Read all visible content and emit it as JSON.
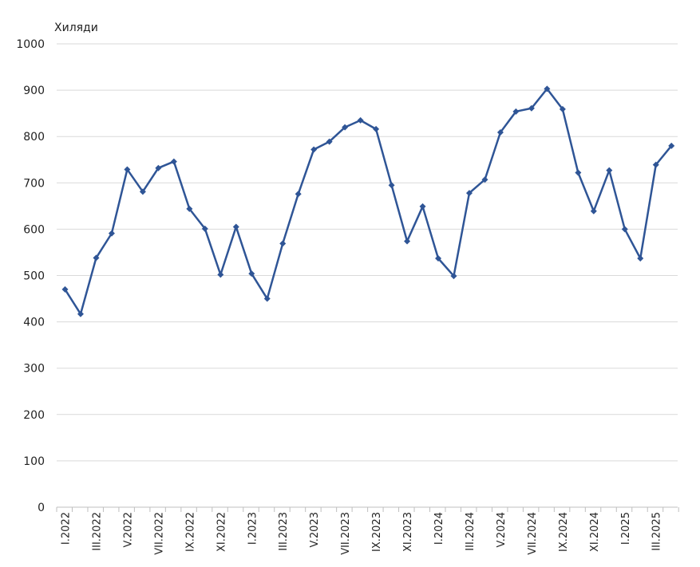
{
  "chart_data": {
    "type": "line",
    "unit_label": "Хиляди",
    "ylim": [
      0,
      1000
    ],
    "y_ticks": [
      0,
      100,
      200,
      300,
      400,
      500,
      600,
      700,
      800,
      900,
      1000
    ],
    "grid": true,
    "legend": "none",
    "categories": [
      "I.2022",
      "II.2022",
      "III.2022",
      "IV.2022",
      "V.2022",
      "VI.2022",
      "VII.2022",
      "VIII.2022",
      "IX.2022",
      "X.2022",
      "XI.2022",
      "XII.2022",
      "I.2023",
      "II.2023",
      "III.2023",
      "IV.2023",
      "V.2023",
      "VI.2023",
      "VII.2023",
      "VIII.2023",
      "IX.2023",
      "X.2023",
      "XI.2023",
      "XII.2023",
      "I.2024",
      "II.2024",
      "III.2024",
      "IV.2024",
      "V.2024",
      "VI.2024",
      "VII.2024",
      "VIII.2024",
      "IX.2024",
      "X.2024",
      "XI.2024",
      "XII.2024",
      "I.2025",
      "II.2025",
      "III.2025",
      "IV.2025"
    ],
    "x_tick_labels": [
      "I.2022",
      "III.2022",
      "V.2022",
      "VII.2022",
      "IX.2022",
      "XI.2022",
      "I.2023",
      "III.2023",
      "V.2023",
      "VII.2023",
      "IX.2023",
      "XI.2023",
      "I.2024",
      "III.2024",
      "V.2024",
      "VII.2024",
      "IX.2024",
      "XI.2024",
      "I.2025",
      "III.2025"
    ],
    "values": [
      470,
      417,
      538,
      591,
      729,
      681,
      732,
      746,
      644,
      601,
      502,
      605,
      504,
      450,
      569,
      676,
      772,
      789,
      820,
      835,
      816,
      695,
      574,
      649,
      537,
      499,
      678,
      707,
      809,
      854,
      861,
      903,
      859,
      722,
      639,
      727,
      600,
      537,
      739,
      780
    ],
    "line_color": "#2f5596",
    "grid_color": "#d9d9d9"
  }
}
